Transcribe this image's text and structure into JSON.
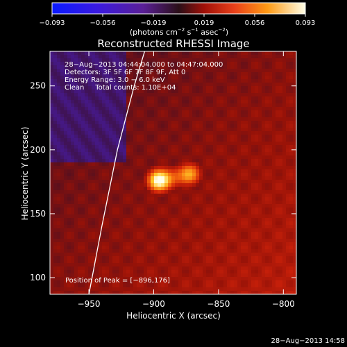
{
  "chart_data": {
    "type": "heatmap",
    "title": "Reconstructed RHESSI Image",
    "xlabel": "Heliocentric X (arcsec)",
    "ylabel": "Heliocentric Y (arcsec)",
    "xlim": [
      -980,
      -790
    ],
    "ylim": [
      87,
      277
    ],
    "x_ticks": [
      -950,
      -900,
      -850,
      -800
    ],
    "x_tick_labels": [
      "−950",
      "−900",
      "−850",
      "−800"
    ],
    "y_ticks": [
      100,
      150,
      200,
      250
    ],
    "y_tick_labels": [
      "100",
      "150",
      "200",
      "250"
    ],
    "colorbar": {
      "range": [
        -0.093,
        0.093
      ],
      "tick_labels": [
        "−0.093",
        "−0.056",
        "−0.019",
        "0.019",
        "0.056",
        "0.093"
      ],
      "units_text": "(photons cm",
      "units_exp1": "−2",
      "units_mid": " s",
      "units_exp2": "−1",
      "units_mid2": " asec",
      "units_exp3": "−2",
      "units_end": ")"
    },
    "info_lines": [
      "28−Aug−2013 04:44:04.000 to 04:47:04.000",
      "Detectors: 3F 5F 6F 7F 8F 9F, Att 0",
      "Energy Range: 3.0 − 6.0 keV",
      "Clean     Total counts: 1.10E+04"
    ],
    "peak_text": "Position of Peak = [−896,176]",
    "peak_position": [
      -896,
      176
    ],
    "sources": [
      {
        "x": -896,
        "y": 176,
        "peak": 0.093
      },
      {
        "x": -872,
        "y": 181,
        "peak": 0.075
      }
    ],
    "limb_curve": [
      [
        -950,
        87
      ],
      [
        -940,
        140
      ],
      [
        -928,
        200
      ],
      [
        -915,
        250
      ],
      [
        -907,
        277
      ]
    ],
    "timestamp": "28−Aug−2013 14:58"
  }
}
